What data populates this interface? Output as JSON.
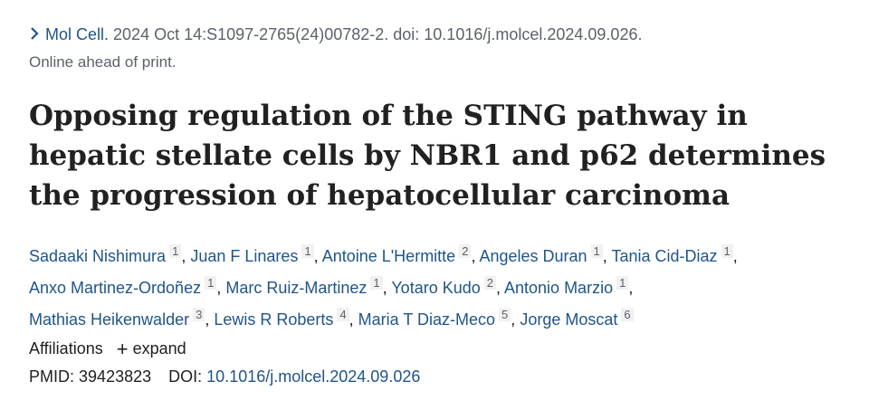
{
  "citation": {
    "journal": "Mol Cell.",
    "details": "2024 Oct 14:S1097-2765(24)00782-2. doi: 10.1016/j.molcel.2024.09.026.",
    "status": "Online ahead of print."
  },
  "title": "Opposing regulation of the STING pathway in hepatic stellate cells by NBR1 and p62 determines the progression of hepatocellular carcinoma",
  "authors": {
    "separator": ",",
    "list": [
      {
        "name": "Sadaaki Nishimura",
        "aff": "1"
      },
      {
        "name": "Juan F Linares",
        "aff": "1"
      },
      {
        "name": "Antoine L'Hermitte",
        "aff": "2"
      },
      {
        "name": "Angeles Duran",
        "aff": "1"
      },
      {
        "name": "Tania Cid-Diaz",
        "aff": "1"
      },
      {
        "name": "Anxo Martinez-Ordoñez",
        "aff": "1"
      },
      {
        "name": "Marc Ruiz-Martinez",
        "aff": "1"
      },
      {
        "name": "Yotaro Kudo",
        "aff": "2"
      },
      {
        "name": "Antonio Marzio",
        "aff": "1"
      },
      {
        "name": "Mathias Heikenwalder",
        "aff": "3"
      },
      {
        "name": "Lewis R Roberts",
        "aff": "4"
      },
      {
        "name": "Maria T Diaz-Meco",
        "aff": "5"
      },
      {
        "name": "Jorge Moscat",
        "aff": "6"
      }
    ]
  },
  "affiliations": {
    "label": "Affiliations",
    "toggle": "expand"
  },
  "identifiers": {
    "pmid_label": "PMID:",
    "pmid": "39423823",
    "doi_label": "DOI:",
    "doi": "10.1016/j.molcel.2024.09.026"
  }
}
